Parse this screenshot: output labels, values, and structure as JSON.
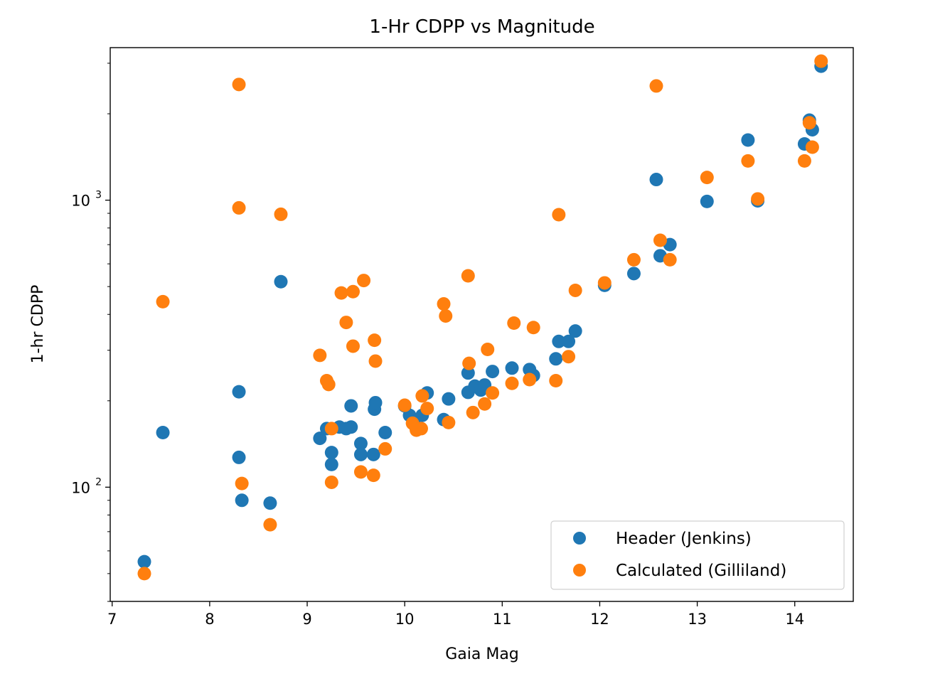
{
  "chart_data": {
    "type": "scatter",
    "title": "1-Hr CDPP vs Magnitude",
    "xlabel": "Gaia Mag",
    "ylabel": "1-hr CDPP",
    "xlim": [
      6.98,
      14.6
    ],
    "ylim": [
      40,
      3400
    ],
    "yscale": "log",
    "xticks": [
      7,
      8,
      9,
      10,
      11,
      12,
      13,
      14
    ],
    "xtick_labels": [
      "7",
      "8",
      "9",
      "10",
      "11",
      "12",
      "13",
      "14"
    ],
    "yticks_major": [
      100,
      1000
    ],
    "ytick_labels": [
      {
        "base": "10",
        "exp": "2"
      },
      {
        "base": "10",
        "exp": "3"
      }
    ],
    "grid": false,
    "legend_position": "lower-right",
    "colors": {
      "header": "#1f77b4",
      "calculated": "#ff7f0e"
    },
    "series": [
      {
        "name": "Header (Jenkins)",
        "color": "#1f77b4",
        "points": [
          [
            7.33,
            55
          ],
          [
            7.52,
            155
          ],
          [
            8.3,
            215
          ],
          [
            8.3,
            127
          ],
          [
            8.33,
            90
          ],
          [
            8.62,
            88
          ],
          [
            8.73,
            520
          ],
          [
            9.13,
            148
          ],
          [
            9.2,
            160
          ],
          [
            9.25,
            132
          ],
          [
            9.25,
            120
          ],
          [
            9.33,
            162
          ],
          [
            9.4,
            160
          ],
          [
            9.45,
            162
          ],
          [
            9.45,
            192
          ],
          [
            9.55,
            142
          ],
          [
            9.55,
            130
          ],
          [
            9.68,
            130
          ],
          [
            9.69,
            187
          ],
          [
            9.7,
            197
          ],
          [
            9.8,
            155
          ],
          [
            10.0,
            192
          ],
          [
            10.05,
            178
          ],
          [
            10.1,
            165
          ],
          [
            10.15,
            160
          ],
          [
            10.18,
            178
          ],
          [
            10.23,
            213
          ],
          [
            10.4,
            172
          ],
          [
            10.45,
            203
          ],
          [
            10.65,
            250
          ],
          [
            10.65,
            214
          ],
          [
            10.72,
            225
          ],
          [
            10.78,
            218
          ],
          [
            10.82,
            227
          ],
          [
            10.9,
            253
          ],
          [
            11.1,
            260
          ],
          [
            11.28,
            257
          ],
          [
            11.32,
            245
          ],
          [
            11.55,
            280
          ],
          [
            11.58,
            322
          ],
          [
            11.68,
            322
          ],
          [
            11.75,
            350
          ],
          [
            12.05,
            505
          ],
          [
            12.35,
            555
          ],
          [
            12.58,
            1180
          ],
          [
            12.62,
            640
          ],
          [
            12.72,
            700
          ],
          [
            13.1,
            990
          ],
          [
            13.52,
            1620
          ],
          [
            13.62,
            995
          ],
          [
            14.1,
            1570
          ],
          [
            14.15,
            1900
          ],
          [
            14.18,
            1760
          ],
          [
            14.27,
            2930
          ]
        ]
      },
      {
        "name": "Calculated (Gilliland)",
        "color": "#ff7f0e",
        "points": [
          [
            7.33,
            50
          ],
          [
            7.52,
            443
          ],
          [
            8.3,
            2530
          ],
          [
            8.3,
            940
          ],
          [
            8.33,
            103
          ],
          [
            8.62,
            74
          ],
          [
            8.73,
            893
          ],
          [
            9.13,
            288
          ],
          [
            9.2,
            235
          ],
          [
            9.22,
            228
          ],
          [
            9.25,
            160
          ],
          [
            9.25,
            104
          ],
          [
            9.35,
            475
          ],
          [
            9.4,
            375
          ],
          [
            9.47,
            480
          ],
          [
            9.47,
            310
          ],
          [
            9.55,
            113
          ],
          [
            9.58,
            525
          ],
          [
            9.68,
            110
          ],
          [
            9.69,
            325
          ],
          [
            9.7,
            275
          ],
          [
            9.8,
            136
          ],
          [
            10.0,
            193
          ],
          [
            10.08,
            167
          ],
          [
            10.12,
            158
          ],
          [
            10.17,
            160
          ],
          [
            10.18,
            208
          ],
          [
            10.23,
            188
          ],
          [
            10.4,
            435
          ],
          [
            10.42,
            395
          ],
          [
            10.45,
            168
          ],
          [
            10.65,
            545
          ],
          [
            10.66,
            270
          ],
          [
            10.7,
            182
          ],
          [
            10.82,
            195
          ],
          [
            10.85,
            302
          ],
          [
            10.9,
            213
          ],
          [
            11.1,
            230
          ],
          [
            11.12,
            373
          ],
          [
            11.28,
            237
          ],
          [
            11.32,
            360
          ],
          [
            11.55,
            235
          ],
          [
            11.58,
            890
          ],
          [
            11.68,
            285
          ],
          [
            11.75,
            485
          ],
          [
            12.05,
            515
          ],
          [
            12.35,
            620
          ],
          [
            12.58,
            2500
          ],
          [
            12.62,
            725
          ],
          [
            12.72,
            620
          ],
          [
            13.1,
            1200
          ],
          [
            13.52,
            1370
          ],
          [
            13.62,
            1010
          ],
          [
            14.1,
            1370
          ],
          [
            14.15,
            1860
          ],
          [
            14.18,
            1530
          ],
          [
            14.27,
            3050
          ]
        ]
      }
    ]
  }
}
